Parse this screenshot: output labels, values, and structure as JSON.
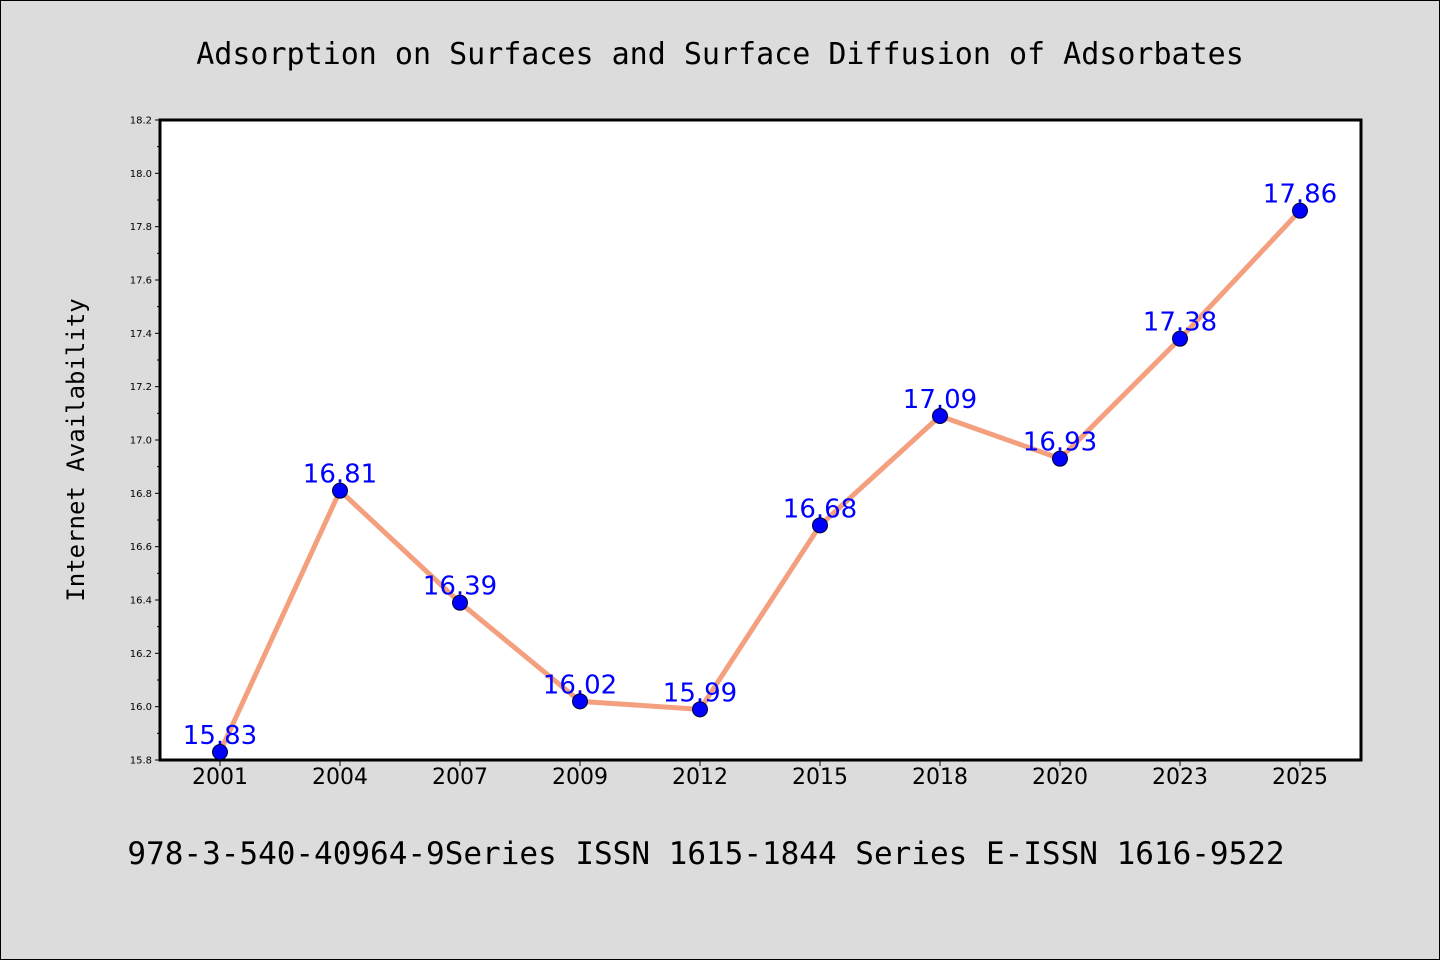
{
  "page": {
    "background": "#dcdcdc"
  },
  "chart_data": {
    "type": "line",
    "title": "Adsorption on Surfaces and Surface Diffusion of Adsorbates",
    "xlabel": "",
    "ylabel": "Internet Availability",
    "footer": "978-3-540-40964-9Series ISSN 1615-1844 Series E-ISSN 1616-9522",
    "categories": [
      "2001",
      "2004",
      "2007",
      "2009",
      "2012",
      "2015",
      "2018",
      "2020",
      "2023",
      "2025"
    ],
    "series": [
      {
        "values": [
          15.83,
          16.81,
          16.39,
          16.02,
          15.99,
          16.68,
          17.09,
          16.93,
          17.38,
          17.86
        ],
        "line_color": "#f4a07f",
        "marker_color": "#0000ff"
      }
    ],
    "data_labels": [
      "15.83",
      "16.81",
      "16.39",
      "16.02",
      "15.99",
      "16.68",
      "17.09",
      "16.93",
      "17.38",
      "17.86"
    ],
    "data_label_color": "#0000ff",
    "ylim": [
      15.8,
      18.2
    ],
    "yticks": [
      "15.8",
      "16.0",
      "16.2",
      "16.4",
      "16.6",
      "16.8",
      "17.0",
      "17.2",
      "17.4",
      "17.6",
      "17.8",
      "18.0",
      "18.2"
    ],
    "grid": false,
    "legend": "none"
  }
}
